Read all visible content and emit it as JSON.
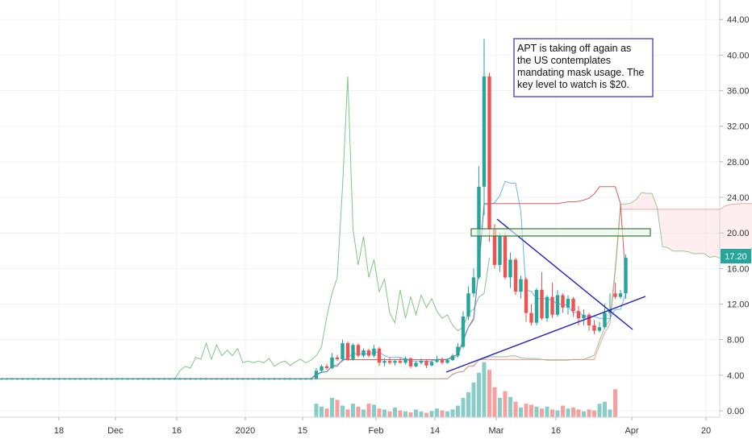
{
  "chart_data": {
    "type": "candlestick",
    "ylim": [
      -1,
      46
    ],
    "y_ticks": [
      "0.00",
      "4.00",
      "8.00",
      "12.00",
      "16.00",
      "20.00",
      "24.00",
      "28.00",
      "32.00",
      "36.00",
      "40.00",
      "44.00"
    ],
    "x_tick_labels": [
      "18",
      "Dec",
      "16",
      "2020",
      "15",
      "Feb",
      "14",
      "Mar",
      "16",
      "Apr",
      "20"
    ],
    "last_price": "17.20",
    "colors": {
      "up": "#26a69a",
      "down": "#ef5350",
      "cloud_green": "#4caf50",
      "cloud_red": "#e57373",
      "conversion": "#2196f3",
      "trendline": "#1f1fbf",
      "zone": "#2e7d32"
    },
    "annotation": "APT is taking off again as the US contemplates mandating mask usage. The key level to watch is $20.",
    "candles": [
      [
        3.6,
        3.7,
        3.5,
        3.6
      ],
      [
        3.6,
        3.7,
        3.5,
        3.6
      ],
      [
        3.6,
        3.7,
        3.5,
        3.6
      ],
      [
        3.6,
        3.7,
        3.5,
        3.6
      ],
      [
        3.6,
        3.7,
        3.5,
        3.6
      ],
      [
        3.6,
        3.7,
        3.5,
        3.6
      ],
      [
        3.6,
        3.7,
        3.5,
        3.6
      ],
      [
        3.6,
        3.7,
        3.5,
        3.6
      ],
      [
        3.6,
        3.7,
        3.5,
        3.6
      ],
      [
        3.6,
        3.7,
        3.5,
        3.6
      ],
      [
        3.6,
        3.7,
        3.5,
        3.6
      ],
      [
        3.6,
        3.7,
        3.5,
        3.6
      ],
      [
        3.6,
        3.7,
        3.5,
        3.6
      ],
      [
        3.6,
        3.7,
        3.5,
        3.6
      ],
      [
        3.6,
        3.7,
        3.5,
        3.6
      ],
      [
        3.6,
        3.7,
        3.5,
        3.6
      ],
      [
        3.6,
        3.7,
        3.5,
        3.6
      ],
      [
        3.6,
        3.7,
        3.5,
        3.6
      ],
      [
        3.6,
        3.7,
        3.5,
        3.6
      ],
      [
        3.6,
        3.7,
        3.5,
        3.6
      ],
      [
        3.6,
        3.7,
        3.5,
        3.6
      ],
      [
        3.6,
        3.7,
        3.5,
        3.6
      ],
      [
        3.6,
        3.7,
        3.5,
        3.6
      ],
      [
        3.6,
        3.7,
        3.5,
        3.6
      ],
      [
        3.6,
        3.7,
        3.5,
        3.6
      ],
      [
        3.6,
        3.7,
        3.5,
        3.6
      ],
      [
        3.6,
        3.7,
        3.5,
        3.6
      ],
      [
        3.6,
        3.7,
        3.5,
        3.6
      ],
      [
        3.6,
        3.7,
        3.5,
        3.6
      ],
      [
        3.6,
        3.7,
        3.5,
        3.6
      ],
      [
        3.6,
        3.7,
        3.5,
        3.6
      ],
      [
        3.6,
        3.7,
        3.5,
        3.6
      ],
      [
        3.6,
        3.7,
        3.5,
        3.6
      ],
      [
        3.6,
        3.7,
        3.5,
        3.6
      ],
      [
        3.6,
        3.7,
        3.5,
        3.6
      ],
      [
        3.6,
        3.7,
        3.5,
        3.6
      ],
      [
        3.6,
        3.7,
        3.5,
        3.6
      ],
      [
        3.6,
        3.7,
        3.5,
        3.6
      ],
      [
        3.6,
        3.7,
        3.5,
        3.6
      ],
      [
        3.6,
        3.7,
        3.5,
        3.6
      ],
      [
        3.6,
        3.7,
        3.5,
        3.6
      ],
      [
        3.6,
        3.7,
        3.5,
        3.6
      ],
      [
        3.6,
        3.7,
        3.5,
        3.6
      ],
      [
        3.6,
        3.7,
        3.5,
        3.6
      ],
      [
        3.6,
        3.7,
        3.5,
        3.6
      ],
      [
        3.6,
        3.7,
        3.5,
        3.6
      ],
      [
        3.6,
        3.7,
        3.5,
        3.6
      ],
      [
        3.6,
        3.7,
        3.5,
        3.6
      ],
      [
        3.6,
        3.7,
        3.5,
        3.6
      ],
      [
        3.6,
        3.7,
        3.5,
        3.6
      ],
      [
        3.6,
        3.7,
        3.5,
        3.6
      ],
      [
        3.6,
        3.7,
        3.5,
        3.6
      ],
      [
        3.6,
        3.7,
        3.5,
        3.6
      ],
      [
        3.6,
        3.7,
        3.5,
        3.6
      ],
      [
        3.6,
        3.7,
        3.5,
        3.6
      ],
      [
        3.6,
        3.7,
        3.5,
        3.6
      ],
      [
        3.6,
        3.7,
        3.5,
        3.6
      ],
      [
        3.6,
        3.7,
        3.5,
        3.6
      ],
      [
        3.6,
        3.7,
        3.5,
        3.6
      ],
      [
        3.6,
        3.7,
        3.5,
        3.6
      ],
      [
        3.6,
        4.8,
        3.5,
        4.5
      ],
      [
        4.5,
        5.2,
        4.3,
        5.0
      ],
      [
        5.0,
        5.3,
        4.6,
        4.8
      ],
      [
        4.8,
        6.5,
        4.7,
        6.0
      ],
      [
        6.0,
        6.3,
        5.6,
        5.8
      ],
      [
        5.8,
        8.0,
        5.6,
        7.6
      ],
      [
        7.6,
        7.8,
        5.6,
        5.8
      ],
      [
        5.8,
        7.6,
        5.6,
        7.4
      ],
      [
        7.4,
        7.6,
        6.0,
        6.2
      ],
      [
        6.2,
        7.0,
        6.0,
        6.8
      ],
      [
        6.8,
        7.0,
        6.0,
        6.2
      ],
      [
        6.2,
        7.4,
        6.0,
        7.0
      ],
      [
        7.0,
        7.2,
        5.0,
        5.4
      ],
      [
        5.4,
        5.9,
        5.0,
        5.6
      ],
      [
        5.6,
        6.0,
        5.2,
        5.4
      ],
      [
        5.4,
        5.8,
        5.1,
        5.6
      ],
      [
        5.6,
        6.0,
        5.3,
        5.4
      ],
      [
        5.4,
        6.1,
        5.2,
        5.9
      ],
      [
        5.9,
        6.0,
        4.8,
        5.0
      ],
      [
        5.0,
        5.6,
        4.9,
        5.4
      ],
      [
        5.4,
        5.9,
        5.2,
        5.6
      ],
      [
        5.6,
        5.8,
        4.8,
        5.1
      ],
      [
        5.1,
        5.7,
        5.0,
        5.5
      ],
      [
        5.5,
        6.2,
        5.4,
        5.8
      ],
      [
        5.8,
        6.0,
        5.2,
        5.4
      ],
      [
        5.4,
        5.9,
        5.3,
        5.7
      ],
      [
        5.7,
        6.4,
        5.6,
        6.2
      ],
      [
        6.2,
        7.6,
        6.0,
        7.2
      ],
      [
        7.2,
        11.2,
        7.0,
        10.6
      ],
      [
        10.6,
        14.0,
        10.2,
        13.2
      ],
      [
        13.2,
        16.0,
        12.8,
        15.0
      ],
      [
        15.0,
        27.5,
        14.8,
        25.2
      ],
      [
        25.2,
        41.8,
        22.0,
        37.6
      ],
      [
        37.6,
        38.0,
        19.0,
        20.4
      ],
      [
        20.4,
        21.0,
        16.0,
        16.4
      ],
      [
        16.4,
        20.0,
        15.6,
        19.6
      ],
      [
        19.6,
        20.0,
        14.8,
        15.0
      ],
      [
        15.0,
        17.8,
        13.8,
        17.0
      ],
      [
        17.0,
        17.2,
        13.0,
        13.4
      ],
      [
        13.4,
        15.2,
        12.6,
        14.8
      ],
      [
        14.8,
        15.0,
        10.0,
        11.0
      ],
      [
        11.0,
        12.0,
        9.6,
        9.9
      ],
      [
        9.9,
        13.8,
        9.6,
        13.6
      ],
      [
        13.6,
        15.6,
        10.2,
        10.4
      ],
      [
        10.4,
        13.0,
        10.0,
        12.8
      ],
      [
        12.8,
        14.4,
        10.4,
        10.8
      ],
      [
        10.8,
        13.6,
        10.6,
        13.0
      ],
      [
        13.0,
        13.2,
        11.0,
        11.6
      ],
      [
        11.6,
        13.0,
        10.8,
        12.6
      ],
      [
        12.6,
        12.8,
        10.6,
        11.2
      ],
      [
        11.2,
        11.8,
        9.6,
        10.4
      ],
      [
        10.4,
        11.4,
        9.6,
        10.8
      ],
      [
        10.8,
        11.0,
        9.0,
        9.6
      ],
      [
        9.6,
        10.2,
        8.6,
        9.0
      ],
      [
        9.0,
        10.0,
        8.8,
        9.4
      ],
      [
        9.4,
        12.0,
        9.2,
        11.0
      ],
      [
        11.0,
        13.2,
        10.6,
        11.4
      ],
      [
        13.2,
        14.4,
        12.6,
        12.8
      ],
      [
        12.8,
        13.6,
        12.6,
        13.2
      ],
      [
        13.2,
        17.6,
        12.6,
        17.2
      ]
    ],
    "volumes": [
      0,
      0,
      0,
      0,
      0,
      0,
      0,
      0,
      0,
      0,
      0,
      0,
      0,
      0,
      0,
      0,
      0,
      0,
      0,
      0,
      0,
      0,
      0,
      0,
      0,
      0,
      0,
      0,
      0,
      0,
      0,
      0,
      0,
      0,
      0,
      0,
      0,
      0,
      0,
      0,
      0,
      0,
      0,
      0,
      0,
      0,
      0,
      0,
      0,
      0,
      0,
      0,
      0,
      0,
      0,
      0,
      0,
      0,
      0,
      0,
      2.8,
      2.2,
      1.8,
      4.0,
      3.6,
      2.4,
      1.6,
      2.8,
      2.2,
      1.6,
      2.8,
      2.6,
      1.8,
      1.6,
      1.2,
      2.0,
      1.4,
      1.2,
      1.0,
      1.6,
      1.2,
      0.9,
      1.3,
      1.8,
      1.4,
      1.2,
      1.6,
      2.4,
      4.0,
      5.2,
      7.2,
      9.2,
      11.4,
      9.8,
      6.2,
      4.0,
      5.4,
      4.2,
      3.2,
      2.0,
      2.8,
      2.6,
      2.2,
      1.8,
      2.2,
      1.6,
      1.4,
      2.4,
      1.8,
      2.0,
      1.6,
      1.2,
      1.6,
      1.4,
      2.8,
      3.2,
      1.6,
      5.8
    ],
    "conversion": [
      3.6,
      3.6,
      3.6,
      3.6,
      3.6,
      3.6,
      3.6,
      3.6,
      3.6,
      3.6,
      3.6,
      3.6,
      3.6,
      3.6,
      3.6,
      3.6,
      3.6,
      3.6,
      3.6,
      3.6,
      3.6,
      3.6,
      3.6,
      3.6,
      3.6,
      3.6,
      3.6,
      3.6,
      3.6,
      3.6,
      3.6,
      3.6,
      3.6,
      3.6,
      3.6,
      3.6,
      3.6,
      3.6,
      3.6,
      3.6,
      3.6,
      3.6,
      3.6,
      3.6,
      3.6,
      3.6,
      3.6,
      3.6,
      3.6,
      3.6,
      3.6,
      3.6,
      3.6,
      3.6,
      3.6,
      3.6,
      3.6,
      3.6,
      3.6,
      3.6,
      4.0,
      4.3,
      4.4,
      5.0,
      5.2,
      5.6,
      6.0,
      6.4,
      6.4,
      6.4,
      6.4,
      6.6,
      6.6,
      6.2,
      6.0,
      6.0,
      6.0,
      5.8,
      5.6,
      5.6,
      5.6,
      5.6,
      5.6,
      5.8,
      5.8,
      5.8,
      5.9,
      6.2,
      7.8,
      9.4,
      10.2,
      16.0,
      23.2,
      23.2,
      23.4,
      24.2,
      25.8,
      25.6,
      25.6,
      22.4,
      13.6,
      13.4,
      12.6,
      12.6,
      12.6,
      12.4,
      12.0,
      12.0,
      11.8,
      11.0,
      11.2,
      10.6,
      10.6,
      10.6,
      10.4,
      10.4,
      10.4,
      11.4,
      11.4,
      13.2
    ]
  }
}
